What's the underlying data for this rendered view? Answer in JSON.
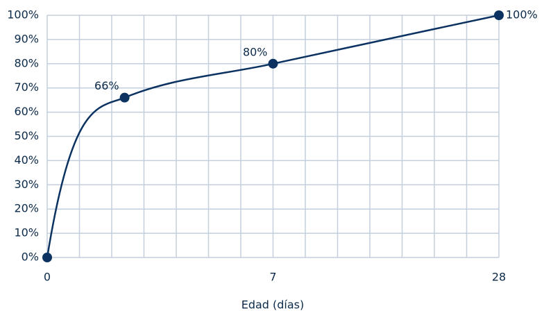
{
  "chart_data": {
    "type": "line",
    "x": [
      0,
      2.4,
      7,
      28
    ],
    "values": [
      0,
      66,
      80,
      100
    ],
    "value_labels": [
      null,
      "66%",
      "80%",
      "100%"
    ],
    "color": "#0b3260",
    "x_label": "Edad (días)",
    "xlim": [
      0,
      28
    ],
    "xticks": [
      0,
      7,
      28
    ],
    "ylim": [
      0,
      100
    ],
    "yticks": [
      {
        "value": 0,
        "label": "0%"
      },
      {
        "value": 10,
        "label": "10%"
      },
      {
        "value": 20,
        "label": "20%"
      },
      {
        "value": 30,
        "label": "30%"
      },
      {
        "value": 40,
        "label": "40%"
      },
      {
        "value": 50,
        "label": "50%"
      },
      {
        "value": 60,
        "label": "60%"
      },
      {
        "value": 70,
        "label": "70%"
      },
      {
        "value": 80,
        "label": "80%"
      },
      {
        "value": 90,
        "label": "90%"
      },
      {
        "value": 100,
        "label": "100%"
      }
    ],
    "grid": true
  }
}
